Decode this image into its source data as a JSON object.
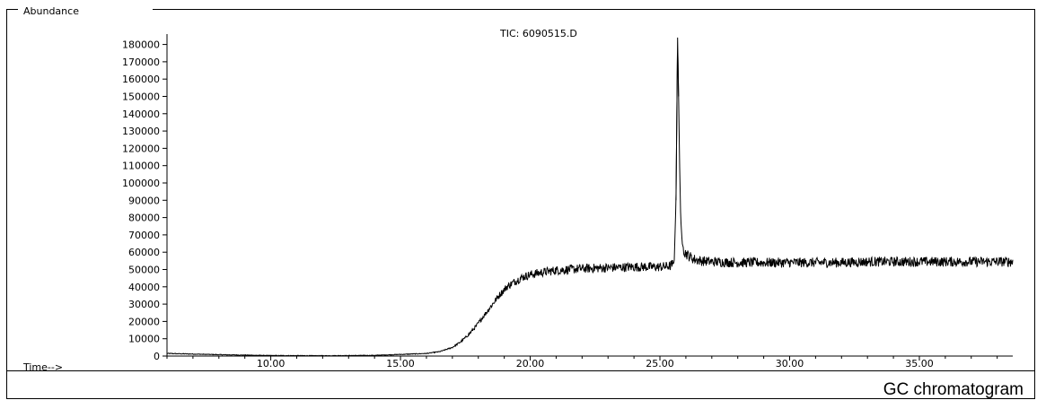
{
  "chart_data": {
    "type": "line",
    "title": "TIC: 6090515.D",
    "ylabel": "Abundance",
    "xlabel": "Time-->",
    "caption": "GC chromatogram",
    "xlim": [
      6.0,
      38.6
    ],
    "ylim": [
      0,
      186000
    ],
    "x_ticks": [
      10,
      15,
      20,
      25,
      30,
      35
    ],
    "x_tick_labels": [
      "10.00",
      "15.00",
      "20.00",
      "25.00",
      "30.00",
      "35.00"
    ],
    "y_ticks": [
      0,
      10000,
      20000,
      30000,
      40000,
      50000,
      60000,
      70000,
      80000,
      90000,
      100000,
      110000,
      120000,
      130000,
      140000,
      150000,
      160000,
      170000,
      180000
    ],
    "y_tick_labels": [
      "0",
      "10000",
      "20000",
      "30000",
      "40000",
      "50000",
      "60000",
      "70000",
      "80000",
      "90000",
      "100000",
      "110000",
      "120000",
      "130000",
      "140000",
      "150000",
      "160000",
      "170000",
      "180000"
    ],
    "grid": false,
    "series": [
      {
        "x": [
          6.0,
          8.0,
          10.0,
          12.0,
          14.0,
          16.0,
          16.5,
          17.0,
          17.3,
          17.6,
          17.9,
          18.2,
          18.5,
          18.8,
          19.1,
          19.4,
          19.7,
          20.0,
          20.5,
          21.0,
          22.0,
          23.0,
          24.0,
          25.0,
          25.4,
          25.55,
          25.62,
          25.68,
          25.72,
          25.76,
          25.8,
          25.86,
          25.95,
          26.1,
          26.3,
          26.6,
          27.0,
          28.0,
          29.0,
          30.0,
          31.0,
          32.0,
          33.0,
          34.0,
          35.0,
          36.0,
          37.0,
          38.0,
          38.6
        ],
        "y": [
          1500,
          800,
          300,
          200,
          400,
          1500,
          2500,
          5000,
          8000,
          12000,
          17000,
          23000,
          29000,
          35000,
          40000,
          43000,
          45500,
          47000,
          48500,
          49500,
          50500,
          51000,
          51500,
          51500,
          52000,
          54000,
          90000,
          184000,
          150000,
          110000,
          80000,
          65000,
          60000,
          58000,
          56000,
          55000,
          54500,
          54000,
          54000,
          54000,
          54000,
          54000,
          54500,
          54500,
          54500,
          54500,
          54500,
          54500,
          54500
        ]
      }
    ]
  }
}
